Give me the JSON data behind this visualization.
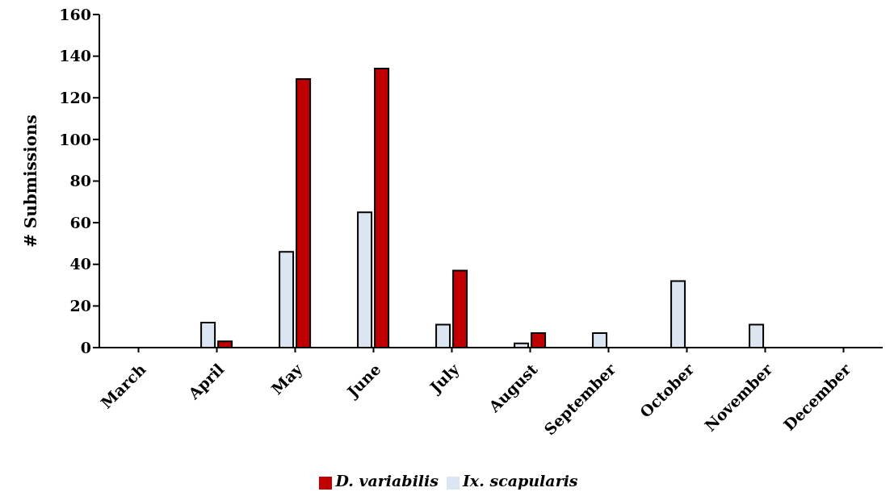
{
  "chart_data": {
    "type": "bar",
    "ylabel": "# Submissions",
    "categories": [
      "March",
      "April",
      "May",
      "June",
      "July",
      "August",
      "September",
      "October",
      "November",
      "December"
    ],
    "series": [
      {
        "name": "Ix. scapularis",
        "color": "#dce6f2",
        "values": [
          0,
          12,
          46,
          65,
          11,
          2,
          7,
          32,
          11,
          0
        ]
      },
      {
        "name": "D. variabilis",
        "color": "#c00000",
        "values": [
          0,
          3,
          129,
          134,
          37,
          7,
          0,
          0,
          0,
          0
        ]
      }
    ],
    "ylim": [
      0,
      160
    ],
    "yticks": [
      0,
      20,
      40,
      60,
      80,
      100,
      120,
      140,
      160
    ],
    "grid": false,
    "legend": "bottom"
  }
}
